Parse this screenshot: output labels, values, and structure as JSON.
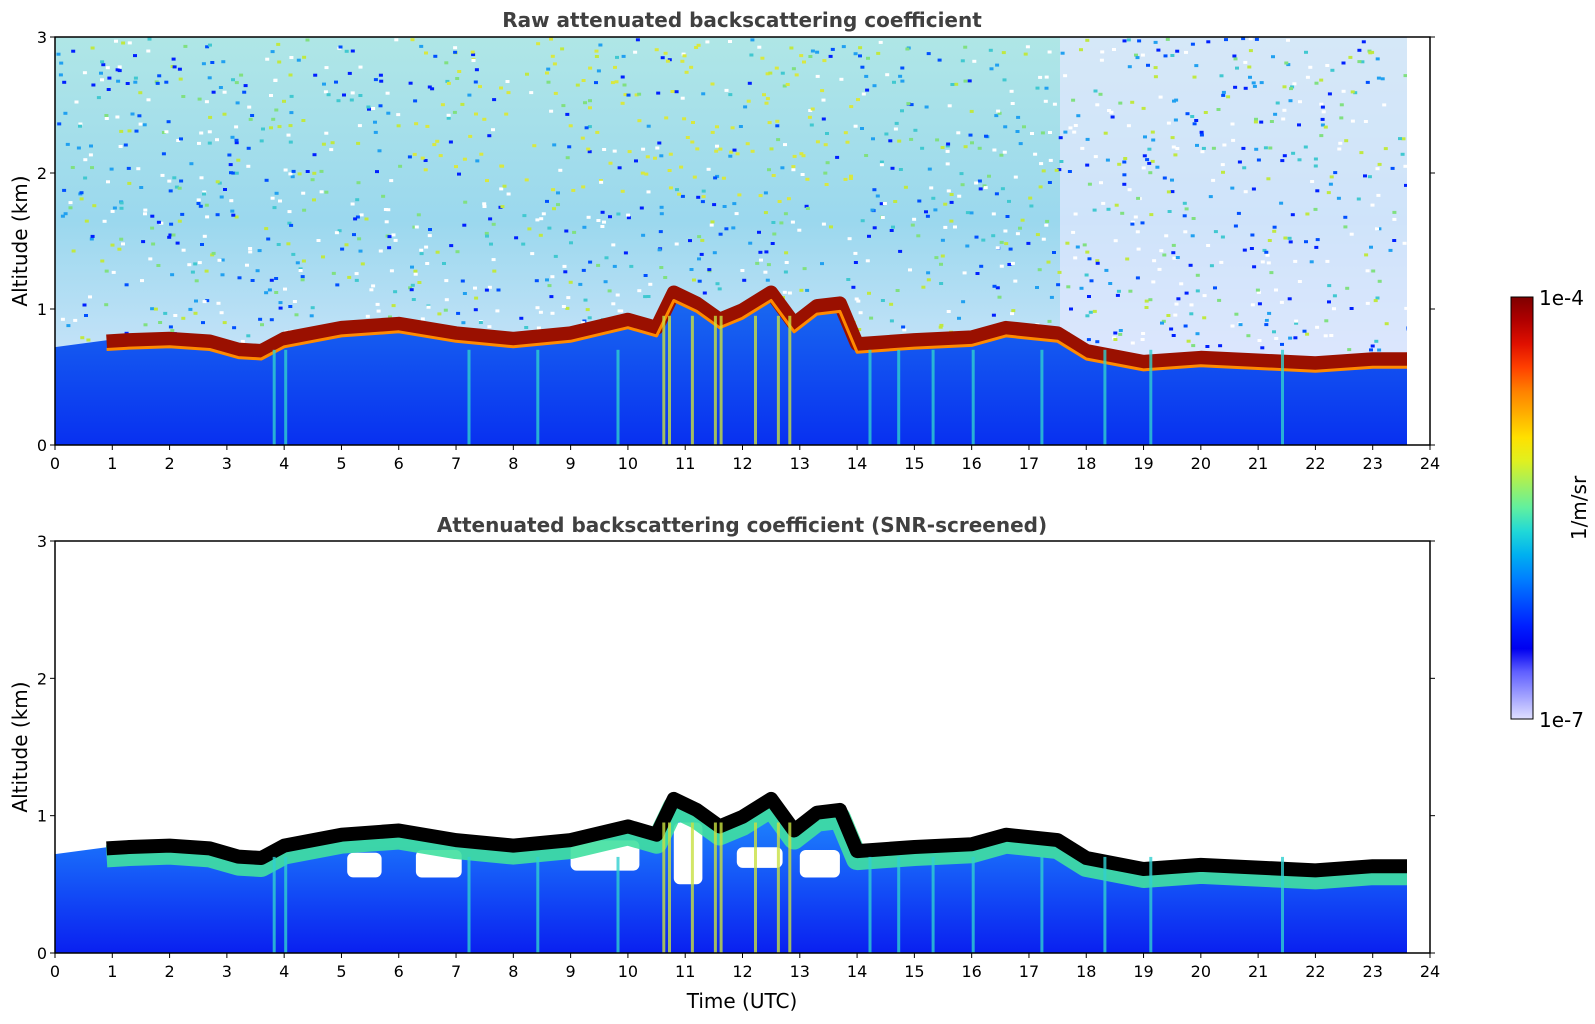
{
  "chart_data": [
    {
      "type": "heatmap",
      "title": "Raw attenuated backscattering coefficient",
      "xlabel": "",
      "ylabel": "Altitude (km)",
      "xlim": [
        0,
        24
      ],
      "ylim": [
        0,
        3
      ],
      "x_ticks": [
        "0",
        "1",
        "2",
        "3",
        "4",
        "5",
        "6",
        "7",
        "8",
        "9",
        "10",
        "11",
        "12",
        "13",
        "14",
        "15",
        "16",
        "17",
        "18",
        "19",
        "20",
        "21",
        "22",
        "23",
        "24"
      ],
      "y_ticks": [
        "0",
        "1",
        "2",
        "3"
      ],
      "data_end_hour": 23.6,
      "layer_top_km": [
        [
          0.9,
          0.82
        ],
        [
          1.3,
          0.83
        ],
        [
          2.0,
          0.84
        ],
        [
          2.7,
          0.82
        ],
        [
          3.2,
          0.76
        ],
        [
          3.6,
          0.75
        ],
        [
          4.0,
          0.84
        ],
        [
          5.0,
          0.92
        ],
        [
          6.0,
          0.95
        ],
        [
          7.0,
          0.88
        ],
        [
          8.0,
          0.84
        ],
        [
          9.0,
          0.88
        ],
        [
          10.0,
          0.98
        ],
        [
          10.5,
          0.92
        ],
        [
          10.8,
          1.18
        ],
        [
          11.2,
          1.1
        ],
        [
          11.6,
          0.98
        ],
        [
          12.0,
          1.05
        ],
        [
          12.5,
          1.18
        ],
        [
          12.9,
          0.95
        ],
        [
          13.3,
          1.08
        ],
        [
          13.7,
          1.1
        ],
        [
          14.0,
          0.8
        ],
        [
          15.0,
          0.83
        ],
        [
          16.0,
          0.85
        ],
        [
          16.6,
          0.92
        ],
        [
          17.5,
          0.88
        ],
        [
          18.0,
          0.75
        ],
        [
          19.0,
          0.67
        ],
        [
          20.0,
          0.7
        ],
        [
          21.0,
          0.68
        ],
        [
          22.0,
          0.66
        ],
        [
          23.0,
          0.69
        ],
        [
          23.6,
          0.69
        ]
      ]
    },
    {
      "type": "heatmap",
      "title": "Attenuated backscattering coefficient (SNR-screened)",
      "xlabel": "Time (UTC)",
      "ylabel": "Altitude (km)",
      "xlim": [
        0,
        24
      ],
      "ylim": [
        0,
        3
      ],
      "x_ticks": [
        "0",
        "1",
        "2",
        "3",
        "4",
        "5",
        "6",
        "7",
        "8",
        "9",
        "10",
        "11",
        "12",
        "13",
        "14",
        "15",
        "16",
        "17",
        "18",
        "19",
        "20",
        "21",
        "22",
        "23",
        "24"
      ],
      "y_ticks": [
        "0",
        "1",
        "2",
        "3"
      ],
      "data_end_hour": 23.6
    }
  ],
  "colorbar": {
    "max_label": "1e-4",
    "min_label": "1e-7",
    "unit_label": "1/m/sr",
    "colors": [
      "#7f0000",
      "#b00000",
      "#e01000",
      "#ff4000",
      "#ff8000",
      "#ffb000",
      "#ffe000",
      "#e0f020",
      "#a0f060",
      "#60f0a0",
      "#20d8d8",
      "#00b0f0",
      "#0080ff",
      "#0050ff",
      "#0020ff",
      "#0000f0",
      "#6060ff",
      "#a0a0ff",
      "#e0e0ff"
    ]
  }
}
